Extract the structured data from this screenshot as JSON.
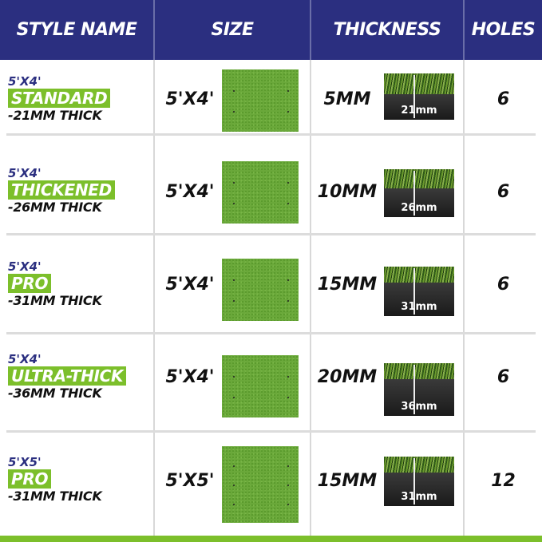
{
  "header": {
    "style_name": "STYLE NAME",
    "size": "SIZE",
    "thickness": "THICKNESS",
    "holes": "HOLES"
  },
  "rows": [
    {
      "size_top": "5'X4'",
      "name": "STANDARD",
      "thick": "-21MM THICK",
      "size": "5'X4'",
      "thickness": "5MM",
      "sample_label": "21mm",
      "holes": "6"
    },
    {
      "size_top": "5'X4'",
      "name": "THICKENED",
      "thick": "-26MM THICK",
      "size": "5'X4'",
      "thickness": "10MM",
      "sample_label": "26mm",
      "holes": "6"
    },
    {
      "size_top": "5'X4'",
      "name": "PRO",
      "thick": "-31MM THICK",
      "size": "5'X4'",
      "thickness": "15MM",
      "sample_label": "31mm",
      "holes": "6"
    },
    {
      "size_top": "5'X4'",
      "name": "ULTRA-THICK",
      "thick": "-36MM THICK",
      "size": "5'X4'",
      "thickness": "20MM",
      "sample_label": "36mm",
      "holes": "6"
    },
    {
      "size_top": "5'X5'",
      "name": "PRO",
      "thick": "-31MM THICK",
      "size": "5'X5'",
      "thickness": "15MM",
      "sample_label": "31mm",
      "holes": "12"
    }
  ],
  "colors": {
    "header": "#2b2f80",
    "accent": "#7cbf2b"
  }
}
